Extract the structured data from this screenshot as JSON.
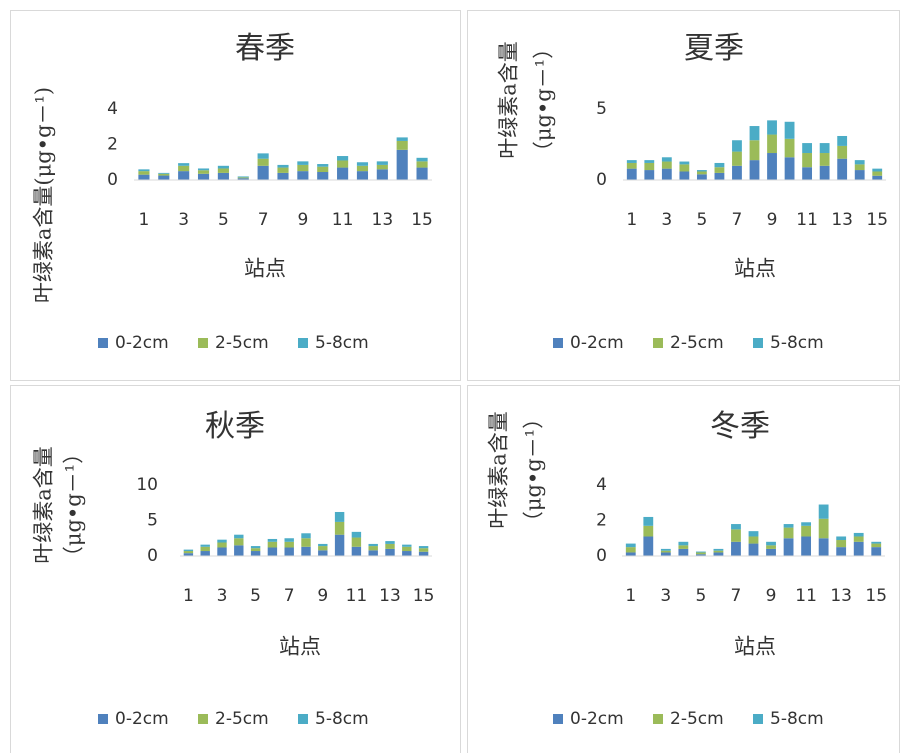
{
  "chart_data": [
    {
      "type": "bar",
      "stacked": true,
      "title": "春季",
      "xlabel": "站点",
      "ylabel": "叶绿素a含量(μg•g－¹)",
      "categories": [
        1,
        null,
        3,
        null,
        5,
        null,
        7,
        null,
        9,
        null,
        11,
        null,
        13,
        null,
        15
      ],
      "series": [
        {
          "name": "0-2cm",
          "color": "#4f81bd",
          "values": [
            0.3,
            0.25,
            0.5,
            0.35,
            0.4,
            0.1,
            0.8,
            0.4,
            0.5,
            0.45,
            0.7,
            0.5,
            0.6,
            1.7,
            0.7
          ]
        },
        {
          "name": "2-5cm",
          "color": "#9bbb59",
          "values": [
            0.2,
            0.1,
            0.3,
            0.2,
            0.25,
            0.05,
            0.4,
            0.3,
            0.35,
            0.3,
            0.4,
            0.3,
            0.25,
            0.5,
            0.35
          ]
        },
        {
          "name": "5-8cm",
          "color": "#4bacc6",
          "values": [
            0.1,
            0.05,
            0.15,
            0.1,
            0.15,
            0.05,
            0.3,
            0.15,
            0.2,
            0.15,
            0.25,
            0.2,
            0.2,
            0.2,
            0.2
          ]
        }
      ],
      "ylim": [
        0,
        4
      ],
      "yticks": [
        0,
        2,
        4
      ]
    },
    {
      "type": "bar",
      "stacked": true,
      "title": "夏季",
      "xlabel": "站点",
      "ylabel": [
        "叶绿素a含量",
        "（μg•g－¹）"
      ],
      "categories": [
        1,
        null,
        3,
        null,
        5,
        null,
        7,
        null,
        9,
        null,
        11,
        null,
        13,
        null,
        15
      ],
      "series": [
        {
          "name": "0-2cm",
          "color": "#4f81bd",
          "values": [
            0.8,
            0.7,
            0.8,
            0.6,
            0.4,
            0.5,
            1.0,
            1.4,
            1.9,
            1.6,
            0.9,
            1.0,
            1.5,
            0.7,
            0.3
          ]
        },
        {
          "name": "2-5cm",
          "color": "#9bbb59",
          "values": [
            0.4,
            0.5,
            0.5,
            0.5,
            0.2,
            0.4,
            1.0,
            1.4,
            1.3,
            1.3,
            1.0,
            0.9,
            0.9,
            0.4,
            0.3
          ]
        },
        {
          "name": "5-8cm",
          "color": "#4bacc6",
          "values": [
            0.2,
            0.2,
            0.3,
            0.2,
            0.1,
            0.3,
            0.8,
            1.0,
            1.0,
            1.2,
            0.7,
            0.7,
            0.7,
            0.3,
            0.2
          ]
        }
      ],
      "ylim": [
        0,
        5
      ],
      "yticks": [
        0,
        5
      ]
    },
    {
      "type": "bar",
      "stacked": true,
      "title": "秋季",
      "xlabel": "站点",
      "ylabel": [
        "叶绿素a含量",
        "（μg•g－¹）"
      ],
      "categories": [
        1,
        null,
        3,
        null,
        5,
        null,
        7,
        null,
        9,
        null,
        11,
        null,
        13,
        null,
        15
      ],
      "series": [
        {
          "name": "0-2cm",
          "color": "#4f81bd",
          "values": [
            0.4,
            0.7,
            1.2,
            1.5,
            0.7,
            1.2,
            1.2,
            1.3,
            0.8,
            3.0,
            1.3,
            0.8,
            1.0,
            0.7,
            0.6
          ]
        },
        {
          "name": "2-5cm",
          "color": "#9bbb59",
          "values": [
            0.3,
            0.6,
            0.7,
            1.0,
            0.4,
            0.8,
            0.8,
            1.2,
            0.6,
            1.8,
            1.3,
            0.6,
            0.7,
            0.6,
            0.5
          ]
        },
        {
          "name": "5-8cm",
          "color": "#4bacc6",
          "values": [
            0.2,
            0.3,
            0.4,
            0.5,
            0.3,
            0.4,
            0.5,
            0.7,
            0.3,
            1.4,
            0.8,
            0.3,
            0.4,
            0.3,
            0.3
          ]
        }
      ],
      "ylim": [
        0,
        10
      ],
      "yticks": [
        0,
        5,
        10
      ]
    },
    {
      "type": "bar",
      "stacked": true,
      "title": "冬季",
      "xlabel": "站点",
      "ylabel": [
        "叶绿素a含量",
        "（μg•g－¹）"
      ],
      "categories": [
        1,
        null,
        3,
        null,
        5,
        null,
        7,
        null,
        9,
        null,
        11,
        null,
        13,
        null,
        15
      ],
      "series": [
        {
          "name": "0-2cm",
          "color": "#4f81bd",
          "values": [
            0.2,
            1.1,
            0.2,
            0.4,
            0.1,
            0.2,
            0.8,
            0.7,
            0.4,
            1.0,
            1.1,
            1.0,
            0.5,
            0.8,
            0.5
          ]
        },
        {
          "name": "2-5cm",
          "color": "#9bbb59",
          "values": [
            0.3,
            0.6,
            0.1,
            0.2,
            0.1,
            0.1,
            0.7,
            0.4,
            0.2,
            0.6,
            0.6,
            1.1,
            0.4,
            0.3,
            0.2
          ]
        },
        {
          "name": "5-8cm",
          "color": "#4bacc6",
          "values": [
            0.2,
            0.5,
            0.1,
            0.2,
            0.05,
            0.1,
            0.3,
            0.3,
            0.2,
            0.2,
            0.2,
            0.8,
            0.2,
            0.2,
            0.1
          ]
        }
      ],
      "ylim": [
        0,
        4
      ],
      "yticks": [
        0,
        2,
        4
      ]
    }
  ]
}
